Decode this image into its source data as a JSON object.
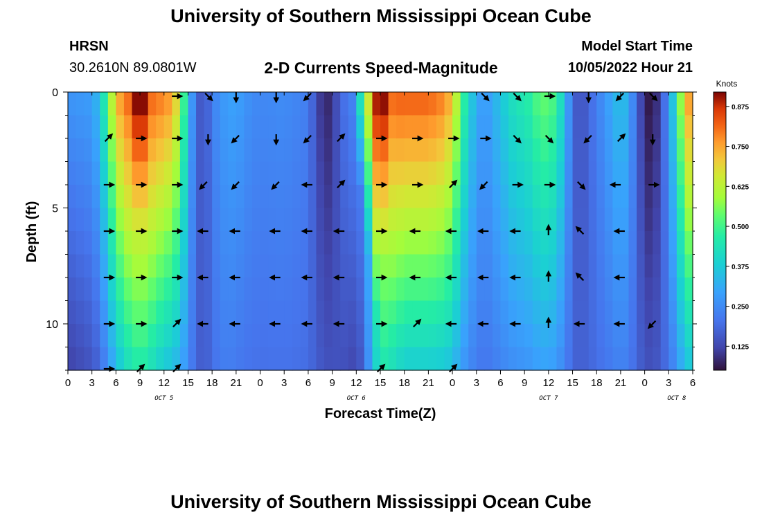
{
  "header": {
    "title": "University of Southern Mississippi Ocean Cube",
    "station": "HRSN",
    "coords": "30.2610N  89.0801W",
    "plot_title": "2-D Currents Speed-Magnitude",
    "model_label": "Model Start Time",
    "model_time": "10/05/2022 Hour 21",
    "footer_title": "University of Southern Mississippi Ocean Cube"
  },
  "chart_data": {
    "type": "heatmap",
    "title": "2-D Currents Speed-Magnitude",
    "xlabel": "Forecast Time(Z)",
    "ylabel": "Depth (ft)",
    "x_ticks": [
      "0",
      "3",
      "6",
      "9",
      "12",
      "15",
      "18",
      "21",
      "0",
      "3",
      "6",
      "9",
      "12",
      "15",
      "18",
      "21",
      "0",
      "3",
      "6",
      "9",
      "12",
      "15",
      "18",
      "21",
      "0",
      "3",
      "6"
    ],
    "x_range_hours": [
      0,
      78
    ],
    "y_ticks": [
      "0",
      "5",
      "10"
    ],
    "y_range_ft": [
      0,
      12
    ],
    "date_labels": [
      {
        "label": "OCT 5",
        "hour": 12
      },
      {
        "label": "OCT 6",
        "hour": 36
      },
      {
        "label": "OCT 7",
        "hour": 60
      },
      {
        "label": "OCT 8",
        "hour": 76
      }
    ],
    "colorbar": {
      "units": "Knots",
      "range": [
        0.05,
        0.92
      ],
      "ticks": [
        "0.875",
        "0.750",
        "0.625",
        "0.500",
        "0.375",
        "0.250",
        "0.125"
      ],
      "tick_values": [
        0.875,
        0.75,
        0.625,
        0.5,
        0.375,
        0.25,
        0.125
      ]
    },
    "speed_profile": {
      "hours": [
        0,
        3,
        4,
        5,
        6,
        7,
        8,
        9,
        10,
        11,
        12,
        13,
        14,
        15,
        16,
        17,
        18,
        19,
        20,
        21,
        22,
        23,
        24,
        27,
        30,
        31,
        32,
        33,
        34,
        35,
        36,
        37,
        38,
        39,
        40,
        41,
        42,
        43,
        44,
        45,
        46,
        47,
        48,
        49,
        50,
        51,
        52,
        53,
        54,
        55,
        56,
        57,
        58,
        59,
        60,
        61,
        62,
        63,
        64,
        65,
        66,
        67,
        68,
        69,
        70,
        71,
        72,
        73,
        74,
        75,
        76,
        77,
        78
      ],
      "surface": [
        0.3,
        0.32,
        0.4,
        0.6,
        0.8,
        0.9,
        0.92,
        0.92,
        0.92,
        0.9,
        0.88,
        0.85,
        0.7,
        0.4,
        0.2,
        0.15,
        0.25,
        0.3,
        0.32,
        0.33,
        0.3,
        0.28,
        0.27,
        0.28,
        0.25,
        0.15,
        0.08,
        0.1,
        0.2,
        0.25,
        0.27,
        0.3,
        0.55,
        0.85,
        0.9,
        0.92,
        0.92,
        0.92,
        0.92,
        0.92,
        0.9,
        0.88,
        0.8,
        0.6,
        0.45,
        0.35,
        0.3,
        0.35,
        0.4,
        0.45,
        0.5,
        0.5,
        0.55,
        0.6,
        0.6,
        0.55,
        0.4,
        0.2,
        0.15,
        0.2,
        0.25,
        0.3,
        0.35,
        0.4,
        0.35,
        0.2,
        0.08,
        0.05,
        0.15,
        0.3,
        0.5,
        0.8,
        0.9
      ],
      "bottom": [
        0.05,
        0.1,
        0.12,
        0.15,
        0.18,
        0.25,
        0.3,
        0.35,
        0.3,
        0.25,
        0.2,
        0.18,
        0.2,
        0.22,
        0.2,
        0.18,
        0.2,
        0.22,
        0.22,
        0.2,
        0.2,
        0.2,
        0.2,
        0.2,
        0.2,
        0.2,
        0.2,
        0.18,
        0.15,
        0.1,
        0.08,
        0.15,
        0.3,
        0.35,
        0.3,
        0.25,
        0.2,
        0.2,
        0.2,
        0.2,
        0.2,
        0.2,
        0.2,
        0.2,
        0.2,
        0.2,
        0.2,
        0.2,
        0.2,
        0.2,
        0.2,
        0.2,
        0.2,
        0.2,
        0.2,
        0.2,
        0.2,
        0.2,
        0.2,
        0.2,
        0.2,
        0.2,
        0.2,
        0.2,
        0.2,
        0.2,
        0.2,
        0.2,
        0.2,
        0.2,
        0.2,
        0.2,
        0.2
      ],
      "core_hours": [
        9,
        39
      ]
    },
    "vectors": [
      {
        "hour": 5,
        "depth": 2,
        "dir": "NE"
      },
      {
        "hour": 9,
        "depth": 2,
        "dir": "E"
      },
      {
        "hour": 13.5,
        "depth": 2,
        "dir": "E"
      },
      {
        "hour": 17.5,
        "depth": 2,
        "dir": "S"
      },
      {
        "hour": 21,
        "depth": 2,
        "dir": "SW"
      },
      {
        "hour": 26,
        "depth": 2,
        "dir": "S"
      },
      {
        "hour": 30,
        "depth": 2,
        "dir": "SW"
      },
      {
        "hour": 34,
        "depth": 2,
        "dir": "NE"
      },
      {
        "hour": 39,
        "depth": 2,
        "dir": "E"
      },
      {
        "hour": 43.5,
        "depth": 2,
        "dir": "E"
      },
      {
        "hour": 48,
        "depth": 2,
        "dir": "E"
      },
      {
        "hour": 52,
        "depth": 2,
        "dir": "E"
      },
      {
        "hour": 56,
        "depth": 2,
        "dir": "SE"
      },
      {
        "hour": 60,
        "depth": 2,
        "dir": "SE"
      },
      {
        "hour": 65,
        "depth": 2,
        "dir": "SW"
      },
      {
        "hour": 69,
        "depth": 2,
        "dir": "NE"
      },
      {
        "hour": 73,
        "depth": 2,
        "dir": "S"
      },
      {
        "hour": 5,
        "depth": 4,
        "dir": "E"
      },
      {
        "hour": 9,
        "depth": 4,
        "dir": "E"
      },
      {
        "hour": 13.5,
        "depth": 4,
        "dir": "E"
      },
      {
        "hour": 17,
        "depth": 4,
        "dir": "SW"
      },
      {
        "hour": 21,
        "depth": 4,
        "dir": "SW"
      },
      {
        "hour": 26,
        "depth": 4,
        "dir": "SW"
      },
      {
        "hour": 30,
        "depth": 4,
        "dir": "W"
      },
      {
        "hour": 34,
        "depth": 4,
        "dir": "NE"
      },
      {
        "hour": 39,
        "depth": 4,
        "dir": "E"
      },
      {
        "hour": 43.5,
        "depth": 4,
        "dir": "E"
      },
      {
        "hour": 48,
        "depth": 4,
        "dir": "NE"
      },
      {
        "hour": 52,
        "depth": 4,
        "dir": "SW"
      },
      {
        "hour": 56,
        "depth": 4,
        "dir": "E"
      },
      {
        "hour": 60,
        "depth": 4,
        "dir": "E"
      },
      {
        "hour": 64,
        "depth": 4,
        "dir": "SE"
      },
      {
        "hour": 68.5,
        "depth": 4,
        "dir": "W"
      },
      {
        "hour": 73,
        "depth": 4,
        "dir": "E"
      },
      {
        "hour": 5,
        "depth": 6,
        "dir": "E"
      },
      {
        "hour": 9,
        "depth": 6,
        "dir": "E"
      },
      {
        "hour": 13.5,
        "depth": 6,
        "dir": "E"
      },
      {
        "hour": 17,
        "depth": 6,
        "dir": "W"
      },
      {
        "hour": 21,
        "depth": 6,
        "dir": "W"
      },
      {
        "hour": 26,
        "depth": 6,
        "dir": "W"
      },
      {
        "hour": 30,
        "depth": 6,
        "dir": "W"
      },
      {
        "hour": 34,
        "depth": 6,
        "dir": "W"
      },
      {
        "hour": 39,
        "depth": 6,
        "dir": "E"
      },
      {
        "hour": 43.5,
        "depth": 6,
        "dir": "W"
      },
      {
        "hour": 48,
        "depth": 6,
        "dir": "W"
      },
      {
        "hour": 52,
        "depth": 6,
        "dir": "W"
      },
      {
        "hour": 56,
        "depth": 6,
        "dir": "W"
      },
      {
        "hour": 60,
        "depth": 6,
        "dir": "N"
      },
      {
        "hour": 64,
        "depth": 6,
        "dir": "NW"
      },
      {
        "hour": 69,
        "depth": 6,
        "dir": "W"
      },
      {
        "hour": 5,
        "depth": 8,
        "dir": "E"
      },
      {
        "hour": 9,
        "depth": 8,
        "dir": "E"
      },
      {
        "hour": 13.5,
        "depth": 8,
        "dir": "E"
      },
      {
        "hour": 17,
        "depth": 8,
        "dir": "W"
      },
      {
        "hour": 21,
        "depth": 8,
        "dir": "W"
      },
      {
        "hour": 26,
        "depth": 8,
        "dir": "W"
      },
      {
        "hour": 30,
        "depth": 8,
        "dir": "W"
      },
      {
        "hour": 34,
        "depth": 8,
        "dir": "W"
      },
      {
        "hour": 39,
        "depth": 8,
        "dir": "E"
      },
      {
        "hour": 43.5,
        "depth": 8,
        "dir": "W"
      },
      {
        "hour": 48,
        "depth": 8,
        "dir": "W"
      },
      {
        "hour": 52,
        "depth": 8,
        "dir": "W"
      },
      {
        "hour": 56,
        "depth": 8,
        "dir": "W"
      },
      {
        "hour": 60,
        "depth": 8,
        "dir": "N"
      },
      {
        "hour": 64,
        "depth": 8,
        "dir": "NW"
      },
      {
        "hour": 69,
        "depth": 8,
        "dir": "W"
      },
      {
        "hour": 5,
        "depth": 10,
        "dir": "E"
      },
      {
        "hour": 9,
        "depth": 10,
        "dir": "E"
      },
      {
        "hour": 13.5,
        "depth": 10,
        "dir": "NE"
      },
      {
        "hour": 17,
        "depth": 10,
        "dir": "W"
      },
      {
        "hour": 21,
        "depth": 10,
        "dir": "W"
      },
      {
        "hour": 26,
        "depth": 10,
        "dir": "W"
      },
      {
        "hour": 30,
        "depth": 10,
        "dir": "W"
      },
      {
        "hour": 34,
        "depth": 10,
        "dir": "W"
      },
      {
        "hour": 39,
        "depth": 10,
        "dir": "E"
      },
      {
        "hour": 43.5,
        "depth": 10,
        "dir": "NE"
      },
      {
        "hour": 48,
        "depth": 10,
        "dir": "W"
      },
      {
        "hour": 52,
        "depth": 10,
        "dir": "W"
      },
      {
        "hour": 56,
        "depth": 10,
        "dir": "W"
      },
      {
        "hour": 60,
        "depth": 10,
        "dir": "N"
      },
      {
        "hour": 64,
        "depth": 10,
        "dir": "W"
      },
      {
        "hour": 69,
        "depth": 10,
        "dir": "W"
      },
      {
        "hour": 73,
        "depth": 10,
        "dir": "SW"
      },
      {
        "hour": 5,
        "depth": 12,
        "dir": "E"
      },
      {
        "hour": 9,
        "depth": 12,
        "dir": "NE"
      },
      {
        "hour": 13.5,
        "depth": 12,
        "dir": "NE"
      },
      {
        "hour": 39,
        "depth": 12,
        "dir": "NE"
      },
      {
        "hour": 48,
        "depth": 12,
        "dir": "NE"
      },
      {
        "hour": 21,
        "depth": 0,
        "dir": "S"
      },
      {
        "hour": 26,
        "depth": 0,
        "dir": "S"
      },
      {
        "hour": 30,
        "depth": 0,
        "dir": "SW"
      },
      {
        "hour": 17.5,
        "depth": 0,
        "dir": "SE"
      },
      {
        "hour": 13.5,
        "depth": 0,
        "dir": "E"
      },
      {
        "hour": 56,
        "depth": 0,
        "dir": "SE"
      },
      {
        "hour": 60,
        "depth": 0,
        "dir": "E"
      },
      {
        "hour": 65,
        "depth": 0,
        "dir": "S"
      },
      {
        "hour": 69,
        "depth": 0,
        "dir": "SW"
      },
      {
        "hour": 73,
        "depth": 0,
        "dir": "SE"
      },
      {
        "hour": 52,
        "depth": 0,
        "dir": "SE"
      }
    ]
  }
}
